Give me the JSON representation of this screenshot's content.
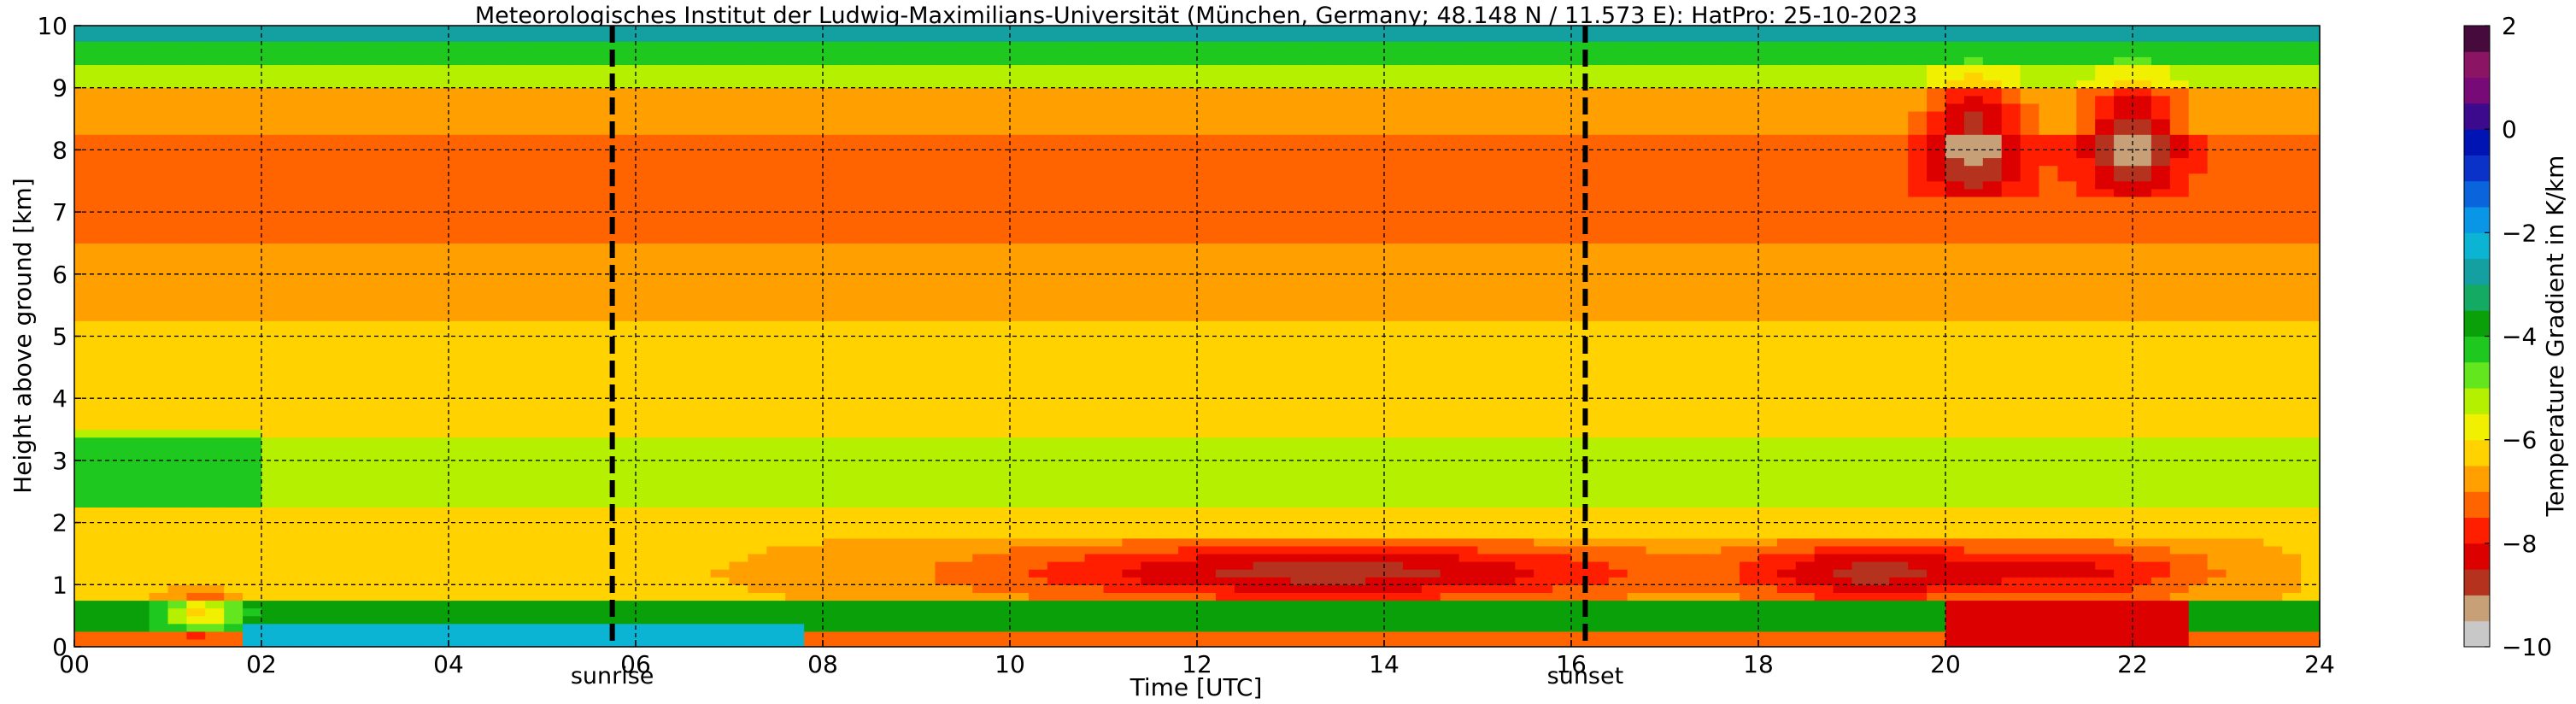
{
  "chart_data": {
    "type": "heatmap",
    "title": "Meteorologisches Institut der Ludwig-Maximilians-Universität (München, Germany; 48.148 N / 11.573 E):    HatPro: 25-10-2023",
    "xlabel": "Time [UTC]",
    "ylabel": "Height above ground [km]",
    "colorbar_label": "Temperature Gradient in K/km",
    "xlim": [
      0,
      24
    ],
    "ylim": [
      0,
      10
    ],
    "clim": [
      -10,
      2
    ],
    "x_ticks": [
      0,
      2,
      4,
      6,
      8,
      10,
      12,
      14,
      16,
      18,
      20,
      22,
      24
    ],
    "x_tick_labels": [
      "00",
      "02",
      "04",
      "06",
      "08",
      "10",
      "12",
      "14",
      "16",
      "18",
      "20",
      "22",
      "24"
    ],
    "y_ticks": [
      0,
      1,
      2,
      3,
      4,
      5,
      6,
      7,
      8,
      9,
      10
    ],
    "y_tick_labels": [
      "0",
      "1",
      "2",
      "3",
      "4",
      "5",
      "6",
      "7",
      "8",
      "9",
      "10"
    ],
    "colorbar_ticks": [
      2,
      0,
      -2,
      -4,
      -6,
      -8,
      -10
    ],
    "colorbar_tick_labels": [
      "2",
      "0",
      "−2",
      "−4",
      "−6",
      "−8",
      "−10"
    ],
    "grid": true,
    "markers": [
      {
        "label": "sunrise",
        "x": 5.75
      },
      {
        "label": "sunset",
        "x": 16.15
      }
    ],
    "colormap": [
      {
        "value": -10.0,
        "color": "#c8c8c8"
      },
      {
        "value": -9.5,
        "color": "#c8a078"
      },
      {
        "value": -9.0,
        "color": "#b4321e"
      },
      {
        "value": -8.5,
        "color": "#dc0000"
      },
      {
        "value": -8.0,
        "color": "#ff1e00"
      },
      {
        "value": -7.5,
        "color": "#ff6400"
      },
      {
        "value": -7.0,
        "color": "#ffa000"
      },
      {
        "value": -6.5,
        "color": "#ffd200"
      },
      {
        "value": -6.0,
        "color": "#f0f000"
      },
      {
        "value": -5.5,
        "color": "#b4f000"
      },
      {
        "value": -5.0,
        "color": "#64e61e"
      },
      {
        "value": -4.5,
        "color": "#1ec81e"
      },
      {
        "value": -4.0,
        "color": "#0aa00a"
      },
      {
        "value": -3.5,
        "color": "#14aa64"
      },
      {
        "value": -3.0,
        "color": "#14a0a0"
      },
      {
        "value": -2.5,
        "color": "#0ab4d2"
      },
      {
        "value": -2.0,
        "color": "#0a96e6"
      },
      {
        "value": -1.5,
        "color": "#0a64dc"
      },
      {
        "value": -1.0,
        "color": "#0a32c8"
      },
      {
        "value": -0.5,
        "color": "#0014b4"
      },
      {
        "value": 0.0,
        "color": "#3c0a8c"
      },
      {
        "value": 0.5,
        "color": "#780a78"
      },
      {
        "value": 1.0,
        "color": "#8c1464"
      },
      {
        "value": 1.5,
        "color": "#460a3c"
      },
      {
        "value": 2.0,
        "color": "#0a0a0a"
      }
    ]
  }
}
